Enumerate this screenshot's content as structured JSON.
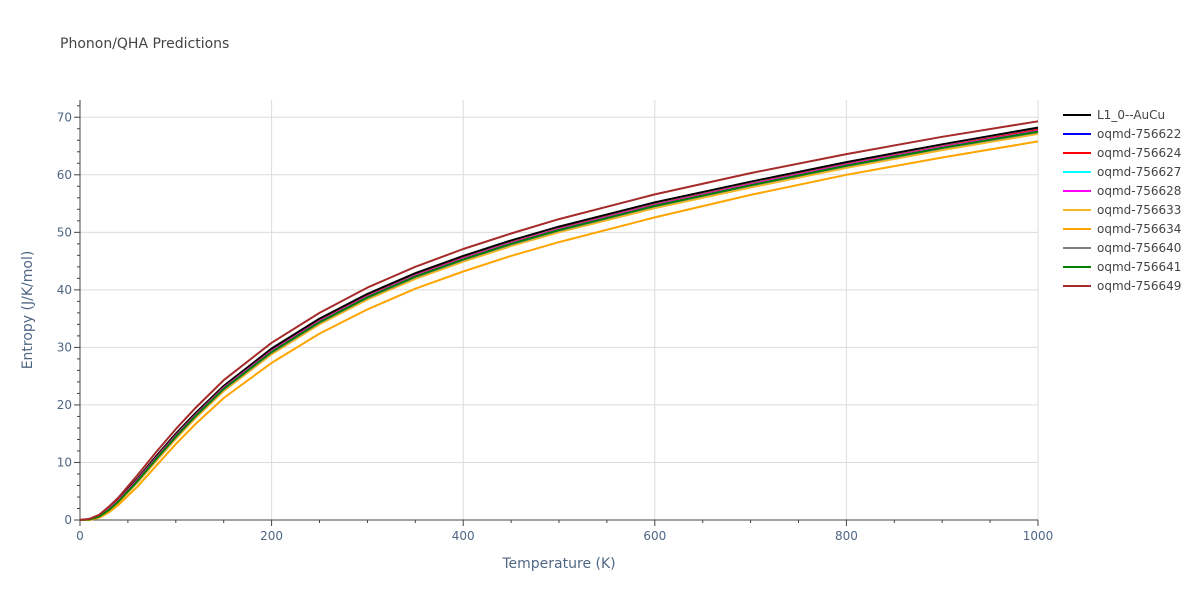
{
  "chart_data": {
    "type": "line",
    "title": "Phonon/QHA Predictions",
    "xlabel": "Temperature (K)",
    "ylabel": "Entropy (J/K/mol)",
    "xlim": [
      0,
      1000
    ],
    "ylim": [
      0,
      73
    ],
    "x_ticks": [
      0,
      200,
      400,
      600,
      800,
      1000
    ],
    "y_ticks": [
      0,
      10,
      20,
      30,
      40,
      50,
      60,
      70
    ],
    "grid": true,
    "legend_position": "top-right",
    "x": [
      0,
      10,
      20,
      30,
      40,
      60,
      80,
      100,
      120,
      150,
      200,
      250,
      300,
      350,
      400,
      450,
      500,
      600,
      700,
      800,
      900,
      1000
    ],
    "series": [
      {
        "name": "L1_0--AuCu",
        "color": "#000000",
        "values": [
          0,
          0.1,
          0.8,
          2.0,
          3.5,
          7.2,
          11.2,
          15.0,
          18.5,
          23.3,
          29.8,
          35.0,
          39.3,
          42.9,
          45.9,
          48.6,
          51.0,
          55.2,
          58.8,
          62.2,
          65.3,
          68.2
        ]
      },
      {
        "name": "oqmd-756622",
        "color": "#0000ff",
        "values": [
          0,
          0.1,
          0.7,
          1.9,
          3.4,
          7.0,
          10.9,
          14.7,
          18.2,
          23.0,
          29.4,
          34.6,
          38.9,
          42.5,
          45.5,
          48.2,
          50.6,
          54.8,
          58.4,
          61.8,
          64.9,
          67.8
        ]
      },
      {
        "name": "oqmd-756624",
        "color": "#ff0000",
        "values": [
          0,
          0.1,
          0.7,
          1.9,
          3.4,
          7.0,
          10.9,
          14.7,
          18.2,
          23.0,
          29.4,
          34.6,
          38.9,
          42.5,
          45.5,
          48.2,
          50.6,
          54.8,
          58.4,
          61.8,
          64.9,
          67.8
        ]
      },
      {
        "name": "oqmd-756627",
        "color": "#00ffff",
        "values": [
          0,
          0.1,
          0.7,
          1.8,
          3.3,
          6.9,
          10.8,
          14.6,
          18.1,
          22.9,
          29.3,
          34.5,
          38.8,
          42.4,
          45.4,
          48.1,
          50.5,
          54.7,
          58.3,
          61.7,
          64.8,
          67.6
        ]
      },
      {
        "name": "oqmd-756628",
        "color": "#ff00ff",
        "values": [
          0,
          0.1,
          0.7,
          1.8,
          3.3,
          6.9,
          10.8,
          14.6,
          18.1,
          22.9,
          29.3,
          34.5,
          38.8,
          42.4,
          45.4,
          48.1,
          50.5,
          54.7,
          58.3,
          61.7,
          64.8,
          67.6
        ]
      },
      {
        "name": "oqmd-756633",
        "color": "#f5b827",
        "values": [
          0,
          0.1,
          0.6,
          1.6,
          3.0,
          6.5,
          10.3,
          14.1,
          17.6,
          22.4,
          28.8,
          34.0,
          38.3,
          41.9,
          44.9,
          47.6,
          50.0,
          54.2,
          57.8,
          61.2,
          64.3,
          67.1
        ]
      },
      {
        "name": "oqmd-756634",
        "color": "#ffa500",
        "values": [
          0,
          0.0,
          0.4,
          1.3,
          2.6,
          5.8,
          9.5,
          13.2,
          16.6,
          21.2,
          27.3,
          32.4,
          36.6,
          40.2,
          43.2,
          45.9,
          48.3,
          52.6,
          56.5,
          60.0,
          63.0,
          65.8
        ]
      },
      {
        "name": "oqmd-756640",
        "color": "#808080",
        "values": [
          0,
          0.1,
          0.6,
          1.7,
          3.2,
          6.7,
          10.6,
          14.4,
          17.9,
          22.7,
          29.1,
          34.3,
          38.6,
          42.2,
          45.2,
          47.9,
          50.3,
          54.5,
          58.1,
          61.5,
          64.6,
          67.4
        ]
      },
      {
        "name": "oqmd-756641",
        "color": "#008000",
        "values": [
          0,
          0.1,
          0.6,
          1.7,
          3.2,
          6.8,
          10.7,
          14.5,
          18.0,
          22.8,
          29.2,
          34.4,
          38.7,
          42.3,
          45.3,
          48.0,
          50.4,
          54.6,
          58.2,
          61.6,
          64.7,
          67.5
        ]
      },
      {
        "name": "oqmd-756649",
        "color": "#a52a2a",
        "values": [
          0,
          0.2,
          0.9,
          2.3,
          3.9,
          7.8,
          11.9,
          15.8,
          19.4,
          24.3,
          30.8,
          36.0,
          40.4,
          44.0,
          47.1,
          49.8,
          52.3,
          56.6,
          60.3,
          63.6,
          66.6,
          69.3
        ]
      }
    ]
  }
}
